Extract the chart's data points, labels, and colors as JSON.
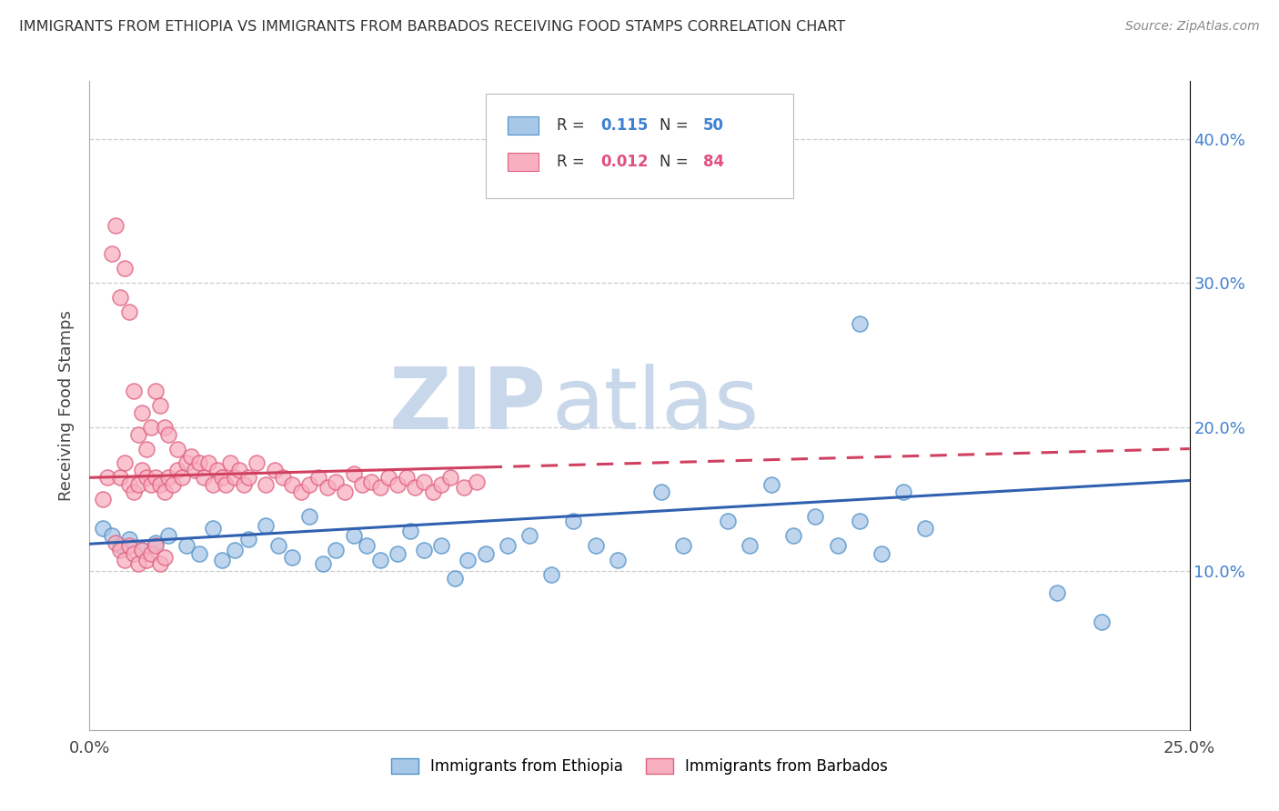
{
  "title": "IMMIGRANTS FROM ETHIOPIA VS IMMIGRANTS FROM BARBADOS RECEIVING FOOD STAMPS CORRELATION CHART",
  "source": "Source: ZipAtlas.com",
  "ylabel": "Receiving Food Stamps",
  "y_ticks": [
    0.1,
    0.2,
    0.3,
    0.4
  ],
  "y_tick_labels": [
    "10.0%",
    "20.0%",
    "30.0%",
    "40.0%"
  ],
  "x_lim": [
    0.0,
    0.25
  ],
  "y_lim": [
    -0.01,
    0.44
  ],
  "legend_r1_val": "0.115",
  "legend_n1_val": "50",
  "legend_r2_val": "0.012",
  "legend_n2_val": "84",
  "color_ethiopia_face": "#a8c8e8",
  "color_ethiopia_edge": "#5090c8",
  "color_barbados_face": "#f8b0c0",
  "color_barbados_edge": "#e06080",
  "color_line_ethiopia": "#3060b0",
  "color_line_barbados": "#d04060",
  "color_value_blue": "#4080d0",
  "color_value_pink": "#e05080",
  "watermark_zip": "ZIP",
  "watermark_atlas": "atlas",
  "watermark_color": "#c8d8ea",
  "grid_color": "#cccccc",
  "eth_line_x0": 0.0,
  "eth_line_x1": 0.25,
  "eth_line_y0": 0.119,
  "eth_line_y1": 0.163,
  "barb_line_x0": 0.0,
  "barb_line_x1": 0.25,
  "barb_line_y0": 0.165,
  "barb_line_y1": 0.185,
  "ethiopia_x": [
    0.003,
    0.005,
    0.007,
    0.009,
    0.012,
    0.015,
    0.018,
    0.022,
    0.025,
    0.028,
    0.03,
    0.033,
    0.036,
    0.04,
    0.043,
    0.046,
    0.05,
    0.053,
    0.056,
    0.06,
    0.063,
    0.066,
    0.07,
    0.073,
    0.076,
    0.08,
    0.083,
    0.086,
    0.09,
    0.095,
    0.1,
    0.105,
    0.11,
    0.115,
    0.12,
    0.13,
    0.135,
    0.145,
    0.15,
    0.155,
    0.16,
    0.165,
    0.17,
    0.175,
    0.18,
    0.185,
    0.19,
    0.175,
    0.22,
    0.23
  ],
  "ethiopia_y": [
    0.13,
    0.125,
    0.118,
    0.122,
    0.115,
    0.12,
    0.125,
    0.118,
    0.112,
    0.13,
    0.108,
    0.115,
    0.122,
    0.132,
    0.118,
    0.11,
    0.138,
    0.105,
    0.115,
    0.125,
    0.118,
    0.108,
    0.112,
    0.128,
    0.115,
    0.118,
    0.095,
    0.108,
    0.112,
    0.118,
    0.125,
    0.098,
    0.135,
    0.118,
    0.108,
    0.155,
    0.118,
    0.135,
    0.118,
    0.16,
    0.125,
    0.138,
    0.118,
    0.135,
    0.112,
    0.155,
    0.13,
    0.272,
    0.085,
    0.065
  ],
  "barbados_x": [
    0.003,
    0.004,
    0.005,
    0.006,
    0.007,
    0.007,
    0.008,
    0.008,
    0.009,
    0.009,
    0.01,
    0.01,
    0.011,
    0.011,
    0.012,
    0.012,
    0.013,
    0.013,
    0.014,
    0.014,
    0.015,
    0.015,
    0.016,
    0.016,
    0.017,
    0.017,
    0.018,
    0.018,
    0.019,
    0.02,
    0.02,
    0.021,
    0.022,
    0.023,
    0.024,
    0.025,
    0.026,
    0.027,
    0.028,
    0.029,
    0.03,
    0.031,
    0.032,
    0.033,
    0.034,
    0.035,
    0.036,
    0.038,
    0.04,
    0.042,
    0.044,
    0.046,
    0.048,
    0.05,
    0.052,
    0.054,
    0.056,
    0.058,
    0.06,
    0.062,
    0.064,
    0.066,
    0.068,
    0.07,
    0.072,
    0.074,
    0.076,
    0.078,
    0.08,
    0.082,
    0.085,
    0.088,
    0.006,
    0.007,
    0.008,
    0.009,
    0.01,
    0.011,
    0.012,
    0.013,
    0.014,
    0.015,
    0.016,
    0.017
  ],
  "barbados_y": [
    0.15,
    0.165,
    0.32,
    0.34,
    0.165,
    0.29,
    0.175,
    0.31,
    0.16,
    0.28,
    0.155,
    0.225,
    0.16,
    0.195,
    0.17,
    0.21,
    0.165,
    0.185,
    0.16,
    0.2,
    0.165,
    0.225,
    0.16,
    0.215,
    0.155,
    0.2,
    0.165,
    0.195,
    0.16,
    0.17,
    0.185,
    0.165,
    0.175,
    0.18,
    0.17,
    0.175,
    0.165,
    0.175,
    0.16,
    0.17,
    0.165,
    0.16,
    0.175,
    0.165,
    0.17,
    0.16,
    0.165,
    0.175,
    0.16,
    0.17,
    0.165,
    0.16,
    0.155,
    0.16,
    0.165,
    0.158,
    0.162,
    0.155,
    0.168,
    0.16,
    0.162,
    0.158,
    0.165,
    0.16,
    0.165,
    0.158,
    0.162,
    0.155,
    0.16,
    0.165,
    0.158,
    0.162,
    0.12,
    0.115,
    0.108,
    0.118,
    0.112,
    0.105,
    0.115,
    0.108,
    0.112,
    0.118,
    0.105,
    0.11
  ]
}
